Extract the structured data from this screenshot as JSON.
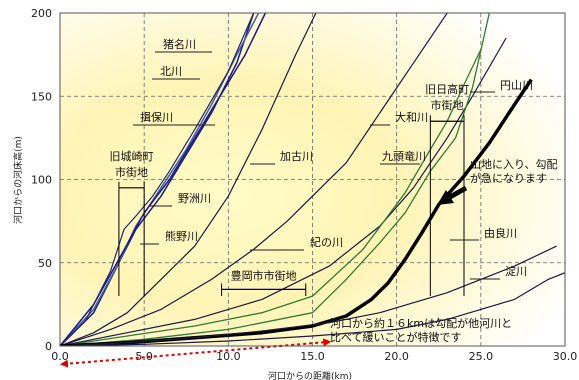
{
  "chart_data": {
    "type": "line",
    "xlabel": "河口からの距離(km)",
    "ylabel": "河口からの河床高(m)",
    "xlim": [
      0,
      30
    ],
    "ylim": [
      0,
      200
    ],
    "xticks": [
      "0.0",
      "5.0",
      "10.0",
      "15.0",
      "20.0",
      "25.0",
      "30.0"
    ],
    "yticks": [
      "0",
      "50",
      "100",
      "150",
      "200"
    ],
    "grid": "dashed",
    "series": [
      {
        "name": "猪名川",
        "color": "#1a1a8c",
        "width": 1.5,
        "points": [
          [
            0,
            0
          ],
          [
            2,
            20
          ],
          [
            3.5,
            50
          ],
          [
            4.5,
            70
          ],
          [
            6,
            90
          ],
          [
            7.5,
            115
          ],
          [
            9,
            140
          ],
          [
            10.5,
            170
          ],
          [
            11.5,
            200
          ]
        ]
      },
      {
        "name": "北川",
        "color": "#4060a0",
        "width": 1.5,
        "points": [
          [
            0,
            0
          ],
          [
            2,
            22
          ],
          [
            3.5,
            50
          ],
          [
            4.5,
            72
          ],
          [
            6,
            95
          ],
          [
            7.5,
            118
          ],
          [
            9,
            145
          ],
          [
            10.5,
            175
          ],
          [
            11.8,
            200
          ]
        ]
      },
      {
        "name": "揖保川",
        "color": "#1a1a8c",
        "width": 1.5,
        "points": [
          [
            0,
            0
          ],
          [
            2,
            25
          ],
          [
            3.5,
            52
          ],
          [
            5,
            80
          ],
          [
            6.5,
            100
          ],
          [
            8,
            125
          ],
          [
            9.5,
            150
          ],
          [
            11,
            175
          ],
          [
            12.2,
            200
          ]
        ]
      },
      {
        "name": "野洲川",
        "color": "#25256a",
        "width": 1.2,
        "points": [
          [
            0,
            0
          ],
          [
            1.5,
            15
          ],
          [
            3,
            45
          ],
          [
            3.8,
            70
          ],
          [
            4.5,
            78
          ],
          [
            5.5,
            90
          ],
          [
            6.5,
            105
          ],
          [
            8,
            130
          ],
          [
            10,
            165
          ],
          [
            11.5,
            200
          ]
        ]
      },
      {
        "name": "熊野川",
        "color": "#1a1a40",
        "width": 1.2,
        "points": [
          [
            0,
            0
          ],
          [
            2,
            8
          ],
          [
            4,
            20
          ],
          [
            6,
            40
          ],
          [
            8,
            60
          ],
          [
            10,
            90
          ],
          [
            12,
            130
          ],
          [
            14,
            175
          ],
          [
            15.2,
            200
          ]
        ]
      },
      {
        "name": "加古川",
        "color": "#1a1a40",
        "width": 1.2,
        "points": [
          [
            0,
            0
          ],
          [
            3,
            10
          ],
          [
            6,
            22
          ],
          [
            9,
            40
          ],
          [
            11.5,
            58
          ],
          [
            13.5,
            75
          ],
          [
            15.5,
            95
          ],
          [
            17,
            110
          ],
          [
            19,
            140
          ],
          [
            21,
            170
          ],
          [
            23,
            200
          ]
        ]
      },
      {
        "name": "紀の川",
        "color": "#1a1a40",
        "width": 1.2,
        "points": [
          [
            0,
            0
          ],
          [
            4,
            8
          ],
          [
            8,
            16
          ],
          [
            12,
            28
          ],
          [
            16,
            48
          ],
          [
            19,
            72
          ],
          [
            21,
            95
          ],
          [
            23,
            125
          ],
          [
            24.5,
            150
          ],
          [
            26.5,
            185
          ]
        ]
      },
      {
        "name": "大和川",
        "color": "#2e7d32",
        "width": 1.3,
        "points": [
          [
            0,
            0
          ],
          [
            4,
            6
          ],
          [
            8,
            12
          ],
          [
            12,
            20
          ],
          [
            15,
            30
          ],
          [
            18,
            58
          ],
          [
            20.5,
            92
          ],
          [
            22,
            118
          ],
          [
            23,
            135
          ],
          [
            24,
            157
          ],
          [
            25,
            178
          ]
        ]
      },
      {
        "name": "九頭竜川",
        "color": "#2e7d32",
        "width": 1.3,
        "points": [
          [
            0,
            0
          ],
          [
            5,
            4
          ],
          [
            10,
            10
          ],
          [
            15,
            20
          ],
          [
            17,
            40
          ],
          [
            19,
            62
          ],
          [
            20.5,
            80
          ],
          [
            22,
            105
          ],
          [
            23.5,
            125
          ],
          [
            24.5,
            155
          ],
          [
            25.5,
            200
          ]
        ]
      },
      {
        "name": "円山川",
        "color": "#000000",
        "width": 3.5,
        "points": [
          [
            0,
            0
          ],
          [
            4,
            2
          ],
          [
            8,
            5
          ],
          [
            12,
            8
          ],
          [
            15,
            12
          ],
          [
            17,
            18
          ],
          [
            18.5,
            28
          ],
          [
            19.5,
            38
          ],
          [
            20.5,
            52
          ],
          [
            21.5,
            68
          ],
          [
            22.5,
            85
          ],
          [
            24,
            102
          ],
          [
            25.5,
            122
          ],
          [
            27,
            145
          ],
          [
            28,
            160
          ]
        ]
      },
      {
        "name": "由良川",
        "color": "#1a1a40",
        "width": 1.2,
        "points": [
          [
            0,
            0
          ],
          [
            4,
            2
          ],
          [
            8,
            5
          ],
          [
            12,
            9
          ],
          [
            16,
            14
          ],
          [
            19,
            20
          ],
          [
            21,
            26
          ],
          [
            23,
            32
          ],
          [
            25,
            40
          ],
          [
            27,
            48
          ],
          [
            29.5,
            60
          ]
        ]
      },
      {
        "name": "淀川",
        "color": "#1a1a40",
        "width": 1.2,
        "points": [
          [
            0,
            0
          ],
          [
            5,
            1
          ],
          [
            10,
            3
          ],
          [
            15,
            6
          ],
          [
            20,
            10
          ],
          [
            23,
            16
          ],
          [
            25,
            22
          ],
          [
            27,
            28
          ],
          [
            29,
            40
          ],
          [
            30,
            44
          ]
        ]
      }
    ],
    "brackets": [
      {
        "label": "旧城崎町",
        "label2": "市街地",
        "x1": 3.5,
        "x2": 5.0,
        "y": 95
      },
      {
        "label": "豊岡市市街地",
        "label2": "",
        "x1": 9.6,
        "x2": 14.6,
        "y": 34
      },
      {
        "label": "旧日高町",
        "label2": "市街地",
        "x1": 22.0,
        "x2": 24.0,
        "y": 135
      }
    ],
    "annotations": {
      "mountain_note_1": "山地に入り、勾配",
      "mountain_note_2": "が急になります",
      "gradient_note_1": "河口から約１６kmは勾配が他河川と",
      "gradient_note_2": "比べて緩いことが特徴です",
      "range_marker_km": [
        0,
        16
      ]
    }
  }
}
